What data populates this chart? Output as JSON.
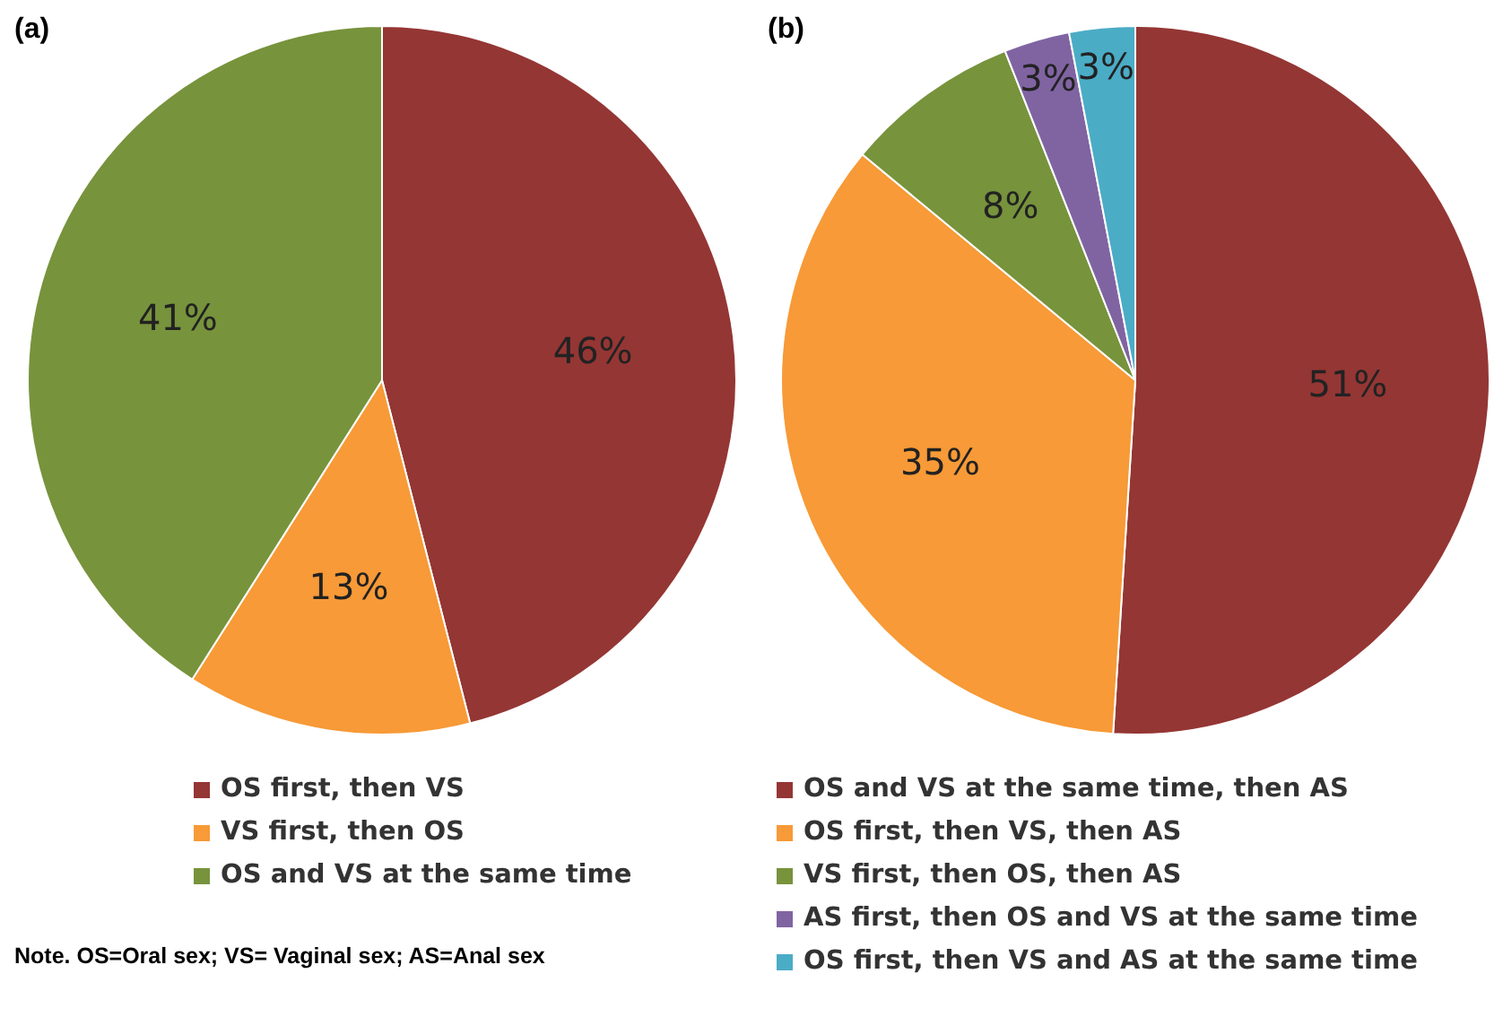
{
  "chart_data": [
    {
      "type": "pie",
      "title": "(a)",
      "categories": [
        "OS first, then VS",
        "VS first, then OS",
        "OS and VS at the same time"
      ],
      "values": [
        46,
        13,
        41
      ],
      "colors": [
        "#943634",
        "#f79a37",
        "#77933c"
      ],
      "value_labels": [
        "46%",
        "13%",
        "41%"
      ],
      "legend": "bottom",
      "annotations": [
        "Note. OS=Oral sex; VS= Vaginal sex; AS=Anal sex"
      ]
    },
    {
      "type": "pie",
      "title": "(b)",
      "categories": [
        "OS and VS at the same time, then AS",
        "OS first, then VS, then AS",
        "VS first, then OS, then AS",
        "AS first, then OS and VS at the same time",
        "OS first, then VS and AS at the same time"
      ],
      "values": [
        51,
        35,
        8,
        3,
        3
      ],
      "colors": [
        "#943634",
        "#f79a37",
        "#77933c",
        "#8064a2",
        "#4bacc6"
      ],
      "value_labels": [
        "51%",
        "35%",
        "8%",
        "3%",
        "3%"
      ],
      "legend": "bottom"
    }
  ]
}
